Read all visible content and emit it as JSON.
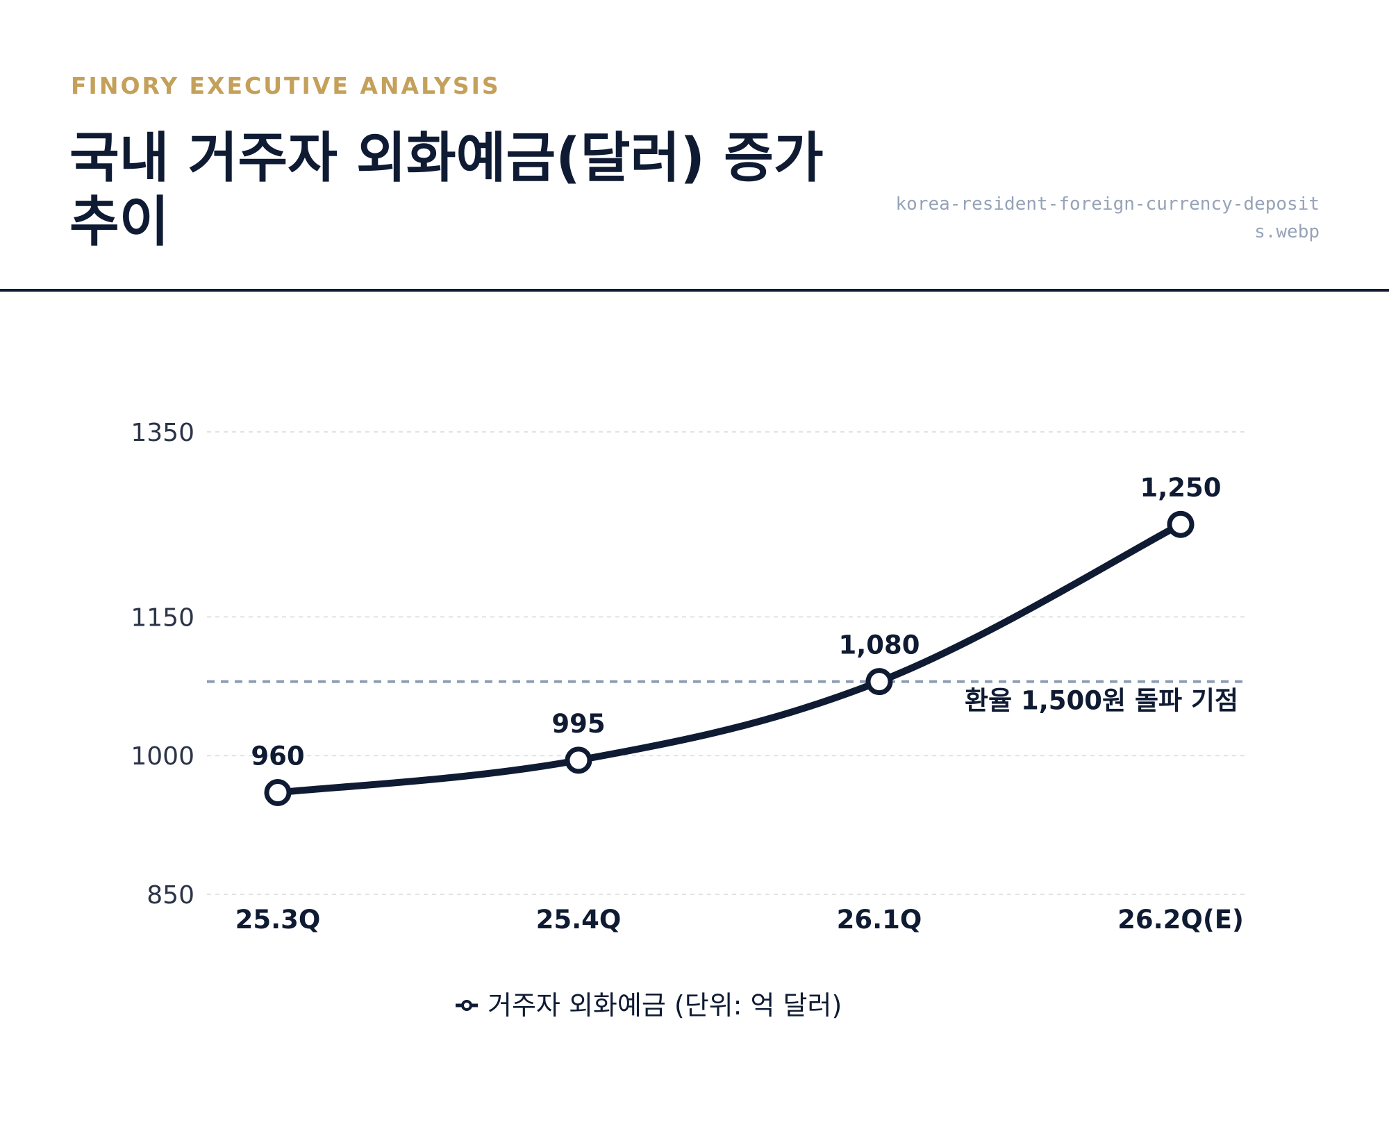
{
  "header": {
    "eyebrow": "FINORY EXECUTIVE ANALYSIS",
    "title": "국내 거주자 외화예금(달러) 증가 추이",
    "filename": "korea-resident-foreign-currency-deposits.webp"
  },
  "chart_data": {
    "type": "line",
    "title": "국내 거주자 외화예금(달러) 증가 추이",
    "xlabel": "",
    "ylabel": "",
    "categories": [
      "25.3Q",
      "25.4Q",
      "26.1Q",
      "26.2Q(E)"
    ],
    "series": [
      {
        "name": "거주자 외화예금 (단위: 억 달러)",
        "values": [
          960,
          995,
          1080,
          1250
        ],
        "data_labels": [
          "960",
          "995",
          "1,080",
          "1,250"
        ]
      }
    ],
    "yticks": [
      850,
      1000,
      1150,
      1350
    ],
    "ylim": [
      850,
      1350
    ],
    "grid": true,
    "legend_position": "bottom-center",
    "reference_line": {
      "value": 1080,
      "label": "환율 1,500원 돌파 기점"
    },
    "colors": {
      "line": "#0f1b33",
      "marker_fill": "#ffffff",
      "reference": "#8e9bb4",
      "grid": "#dfe3e8",
      "accent": "#c4a05a"
    }
  }
}
